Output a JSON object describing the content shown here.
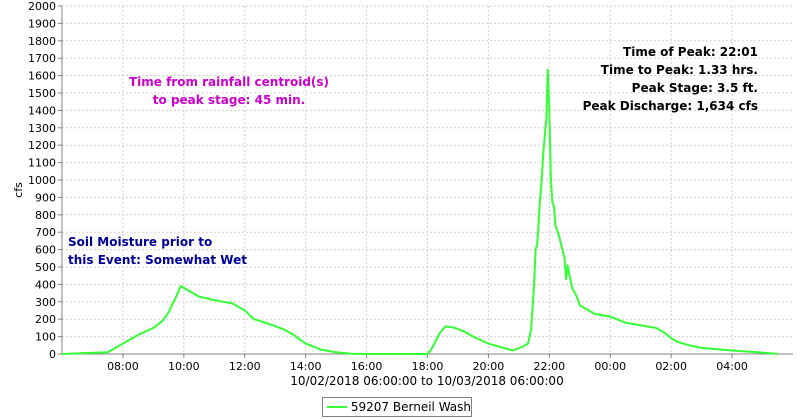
{
  "chart_data": {
    "type": "line",
    "xlabel": "10/02/2018 06:00:00 to 10/03/2018 06:00:00",
    "ylabel": "cfs",
    "x_ticks": [
      "08:00",
      "10:00",
      "12:00",
      "14:00",
      "16:00",
      "18:00",
      "20:00",
      "22:00",
      "00:00",
      "02:00",
      "04:00"
    ],
    "x_tick_hours": [
      8,
      10,
      12,
      14,
      16,
      18,
      20,
      22,
      24,
      26,
      28
    ],
    "xlim": [
      6,
      30
    ],
    "ylim": [
      0,
      2000
    ],
    "y_ticks": [
      0,
      100,
      200,
      300,
      400,
      500,
      600,
      700,
      800,
      900,
      1000,
      1100,
      1200,
      1300,
      1400,
      1500,
      1600,
      1700,
      1800,
      1900,
      2000
    ],
    "grid": true,
    "legend_position": "bottom-center",
    "series": [
      {
        "name": "59207 Berneil Wash",
        "color": "#33ff33",
        "x_hours": [
          6.0,
          7.5,
          8.0,
          8.5,
          9.0,
          9.3,
          9.5,
          9.75,
          9.9,
          10.2,
          10.5,
          11.0,
          11.3,
          11.6,
          12.0,
          12.3,
          12.5,
          13.0,
          13.3,
          13.6,
          14.0,
          14.5,
          15.0,
          15.5,
          16.0,
          17.5,
          18.0,
          18.1,
          18.2,
          18.4,
          18.6,
          18.9,
          19.2,
          19.5,
          20.0,
          20.5,
          20.8,
          21.1,
          21.3,
          21.4,
          21.5,
          21.55,
          21.6,
          21.7,
          21.75,
          21.8,
          21.9,
          21.95,
          22.0,
          22.05,
          22.1,
          22.15,
          22.2,
          22.3,
          22.4,
          22.5,
          22.55,
          22.6,
          22.7,
          22.75,
          22.9,
          23.0,
          23.5,
          24.0,
          24.5,
          25.0,
          25.5,
          25.8,
          26.0,
          26.2,
          26.6,
          27.0,
          28.0,
          29.0,
          29.5
        ],
        "values": [
          0,
          10,
          60,
          110,
          150,
          190,
          240,
          330,
          390,
          360,
          330,
          310,
          300,
          290,
          250,
          200,
          190,
          160,
          140,
          110,
          60,
          25,
          10,
          2,
          0,
          0,
          0,
          20,
          50,
          120,
          160,
          150,
          130,
          100,
          60,
          35,
          20,
          40,
          60,
          140,
          400,
          600,
          630,
          900,
          1000,
          1150,
          1350,
          1634,
          1400,
          1000,
          870,
          850,
          740,
          690,
          620,
          550,
          430,
          510,
          420,
          380,
          330,
          280,
          230,
          215,
          180,
          165,
          150,
          120,
          90,
          70,
          50,
          35,
          20,
          8,
          0
        ]
      }
    ],
    "annotations": {
      "centroid_line1": "Time from rainfall centroid(s)",
      "centroid_line2": "to peak stage: 45 min.",
      "peak_time": "Time of Peak: 22:01",
      "time_to_peak": "Time to Peak: 1.33 hrs.",
      "peak_stage": "Peak Stage: 3.5 ft.",
      "peak_discharge": "Peak Discharge: 1,634 cfs",
      "soil_line1": "Soil Moisture prior to",
      "soil_line2": "this Event: Somewhat Wet"
    },
    "colors": {
      "centroid_text": "#cc00cc",
      "peak_text": "#000000",
      "soil_text": "#000099",
      "grid": "#d0d0d0",
      "axis": "#808080"
    }
  }
}
